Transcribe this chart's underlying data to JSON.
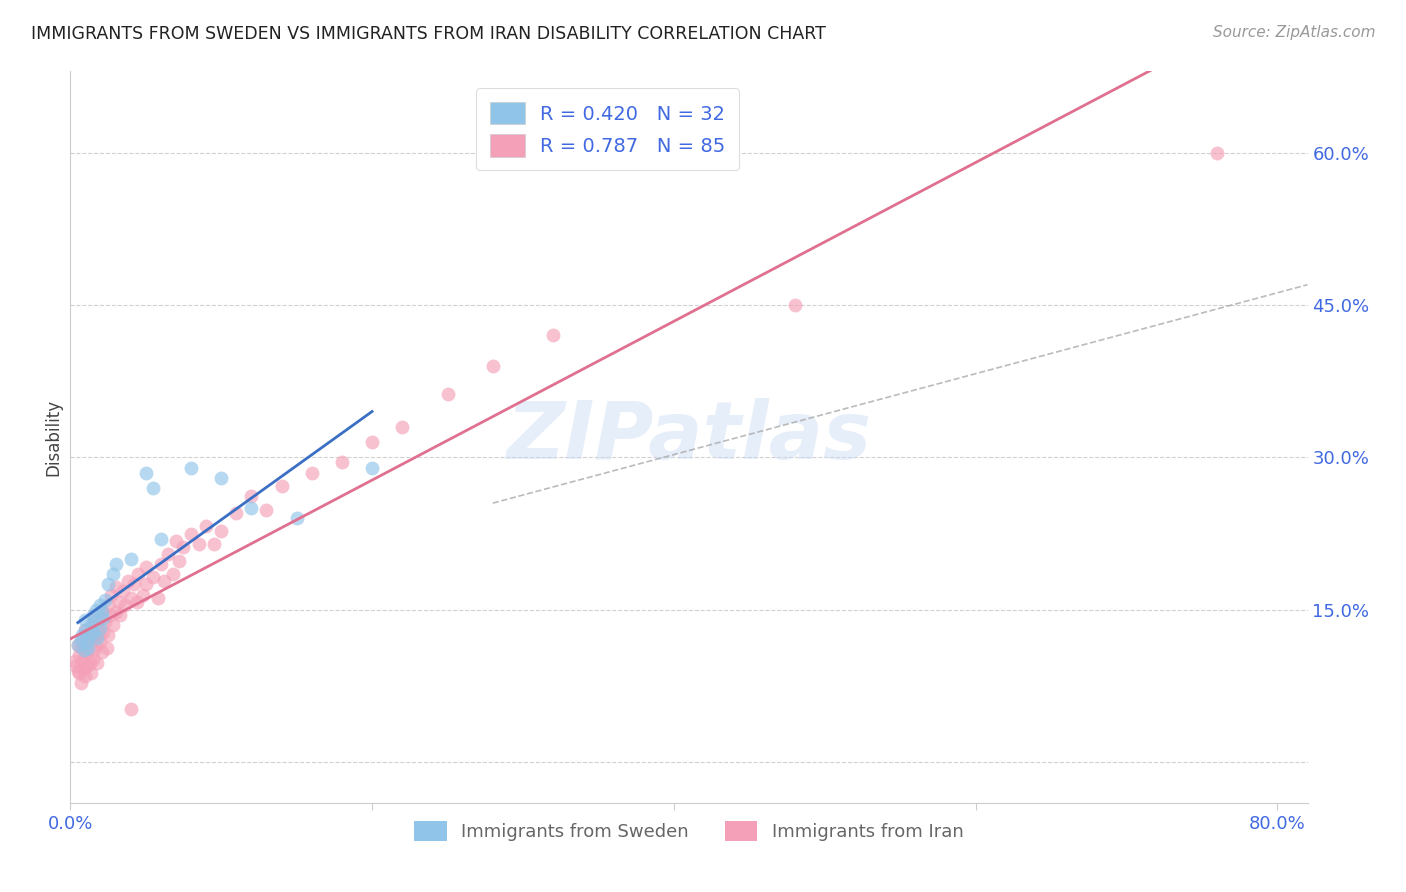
{
  "title": "IMMIGRANTS FROM SWEDEN VS IMMIGRANTS FROM IRAN DISABILITY CORRELATION CHART",
  "source": "Source: ZipAtlas.com",
  "ylabel": "Disability",
  "xlim": [
    0.0,
    0.82
  ],
  "ylim": [
    -0.04,
    0.68
  ],
  "yticks": [
    0.0,
    0.15,
    0.3,
    0.45,
    0.6
  ],
  "ytick_labels": [
    "",
    "15.0%",
    "30.0%",
    "45.0%",
    "60.0%"
  ],
  "xticks": [
    0.0,
    0.2,
    0.4,
    0.6,
    0.8
  ],
  "xtick_labels": [
    "0.0%",
    "",
    "",
    "",
    "80.0%"
  ],
  "sweden_color": "#90c4e8",
  "iran_color": "#f4a0b8",
  "sweden_line_color": "#3a6fc4",
  "iran_line_color": "#e07090",
  "sweden_dash_color": "#aaaaaa",
  "legend_text_color": "#4169e1",
  "sweden_R": 0.42,
  "sweden_N": 32,
  "iran_R": 0.787,
  "iran_N": 85,
  "watermark": "ZIPatlas",
  "background_color": "#ffffff",
  "sweden_scatter": {
    "x": [
      0.005,
      0.007,
      0.008,
      0.009,
      0.01,
      0.01,
      0.011,
      0.012,
      0.013,
      0.014,
      0.015,
      0.015,
      0.016,
      0.017,
      0.018,
      0.02,
      0.02,
      0.021,
      0.022,
      0.023,
      0.025,
      0.028,
      0.03,
      0.04,
      0.05,
      0.055,
      0.06,
      0.08,
      0.1,
      0.12,
      0.15,
      0.2
    ],
    "y": [
      0.115,
      0.12,
      0.125,
      0.11,
      0.13,
      0.14,
      0.118,
      0.112,
      0.125,
      0.135,
      0.128,
      0.145,
      0.138,
      0.15,
      0.122,
      0.132,
      0.155,
      0.148,
      0.142,
      0.16,
      0.175,
      0.185,
      0.195,
      0.2,
      0.285,
      0.27,
      0.22,
      0.29,
      0.28,
      0.25,
      0.24,
      0.29
    ]
  },
  "iran_scatter": {
    "x": [
      0.003,
      0.004,
      0.005,
      0.005,
      0.006,
      0.006,
      0.007,
      0.007,
      0.008,
      0.008,
      0.009,
      0.009,
      0.01,
      0.01,
      0.01,
      0.011,
      0.011,
      0.012,
      0.012,
      0.013,
      0.013,
      0.014,
      0.014,
      0.015,
      0.015,
      0.016,
      0.016,
      0.017,
      0.018,
      0.018,
      0.019,
      0.02,
      0.02,
      0.021,
      0.022,
      0.022,
      0.023,
      0.024,
      0.025,
      0.025,
      0.026,
      0.027,
      0.028,
      0.03,
      0.03,
      0.032,
      0.033,
      0.035,
      0.036,
      0.038,
      0.04,
      0.04,
      0.042,
      0.044,
      0.045,
      0.048,
      0.05,
      0.05,
      0.055,
      0.058,
      0.06,
      0.062,
      0.065,
      0.068,
      0.07,
      0.072,
      0.075,
      0.08,
      0.085,
      0.09,
      0.095,
      0.1,
      0.11,
      0.12,
      0.13,
      0.14,
      0.16,
      0.18,
      0.2,
      0.22,
      0.25,
      0.28,
      0.32,
      0.48,
      0.76
    ],
    "y": [
      0.1,
      0.095,
      0.09,
      0.115,
      0.105,
      0.088,
      0.112,
      0.078,
      0.1,
      0.118,
      0.092,
      0.122,
      0.085,
      0.105,
      0.13,
      0.095,
      0.115,
      0.108,
      0.125,
      0.098,
      0.118,
      0.088,
      0.132,
      0.102,
      0.122,
      0.11,
      0.14,
      0.115,
      0.098,
      0.135,
      0.125,
      0.118,
      0.142,
      0.108,
      0.128,
      0.148,
      0.138,
      0.112,
      0.155,
      0.125,
      0.145,
      0.165,
      0.135,
      0.148,
      0.172,
      0.158,
      0.145,
      0.168,
      0.155,
      0.178,
      0.162,
      0.052,
      0.175,
      0.158,
      0.185,
      0.165,
      0.175,
      0.192,
      0.182,
      0.162,
      0.195,
      0.178,
      0.205,
      0.185,
      0.218,
      0.198,
      0.212,
      0.225,
      0.215,
      0.232,
      0.215,
      0.228,
      0.245,
      0.262,
      0.248,
      0.272,
      0.285,
      0.295,
      0.315,
      0.33,
      0.362,
      0.39,
      0.42,
      0.45,
      0.6
    ]
  },
  "sweden_line": {
    "x0": 0.0,
    "x1": 0.82,
    "y0_intercept": 0.105,
    "slope": 0.52
  },
  "iran_line": {
    "x0": 0.0,
    "x1": 0.82,
    "y0_intercept": 0.078,
    "slope": 0.675
  },
  "sweden_dash_line": {
    "x0": 0.28,
    "x1": 0.82,
    "y0": 0.255,
    "y1": 0.47
  }
}
